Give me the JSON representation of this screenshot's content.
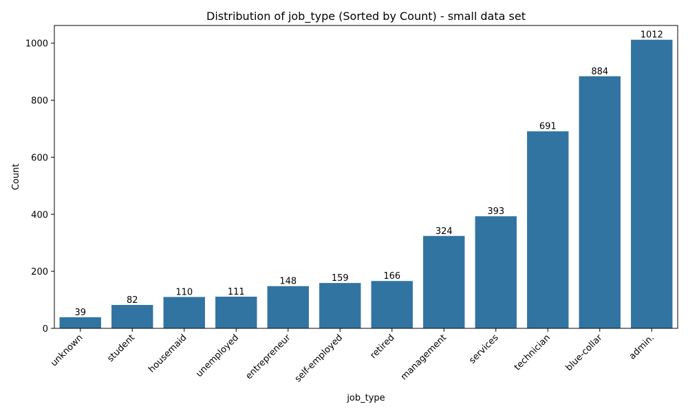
{
  "chart_data": {
    "type": "bar",
    "title": "Distribution of job_type (Sorted by Count) - small data set",
    "xlabel": "job_type",
    "ylabel": "Count",
    "categories": [
      "unknown",
      "student",
      "housemaid",
      "unemployed",
      "entrepreneur",
      "self-employed",
      "retired",
      "management",
      "services",
      "technician",
      "blue-collar",
      "admin."
    ],
    "values": [
      39,
      82,
      110,
      111,
      148,
      159,
      166,
      324,
      393,
      691,
      884,
      1012
    ],
    "ylim": [
      0,
      1062
    ],
    "yticks": [
      0,
      200,
      400,
      600,
      800,
      1000
    ],
    "grid": false,
    "bar_color": "#3274a1"
  }
}
